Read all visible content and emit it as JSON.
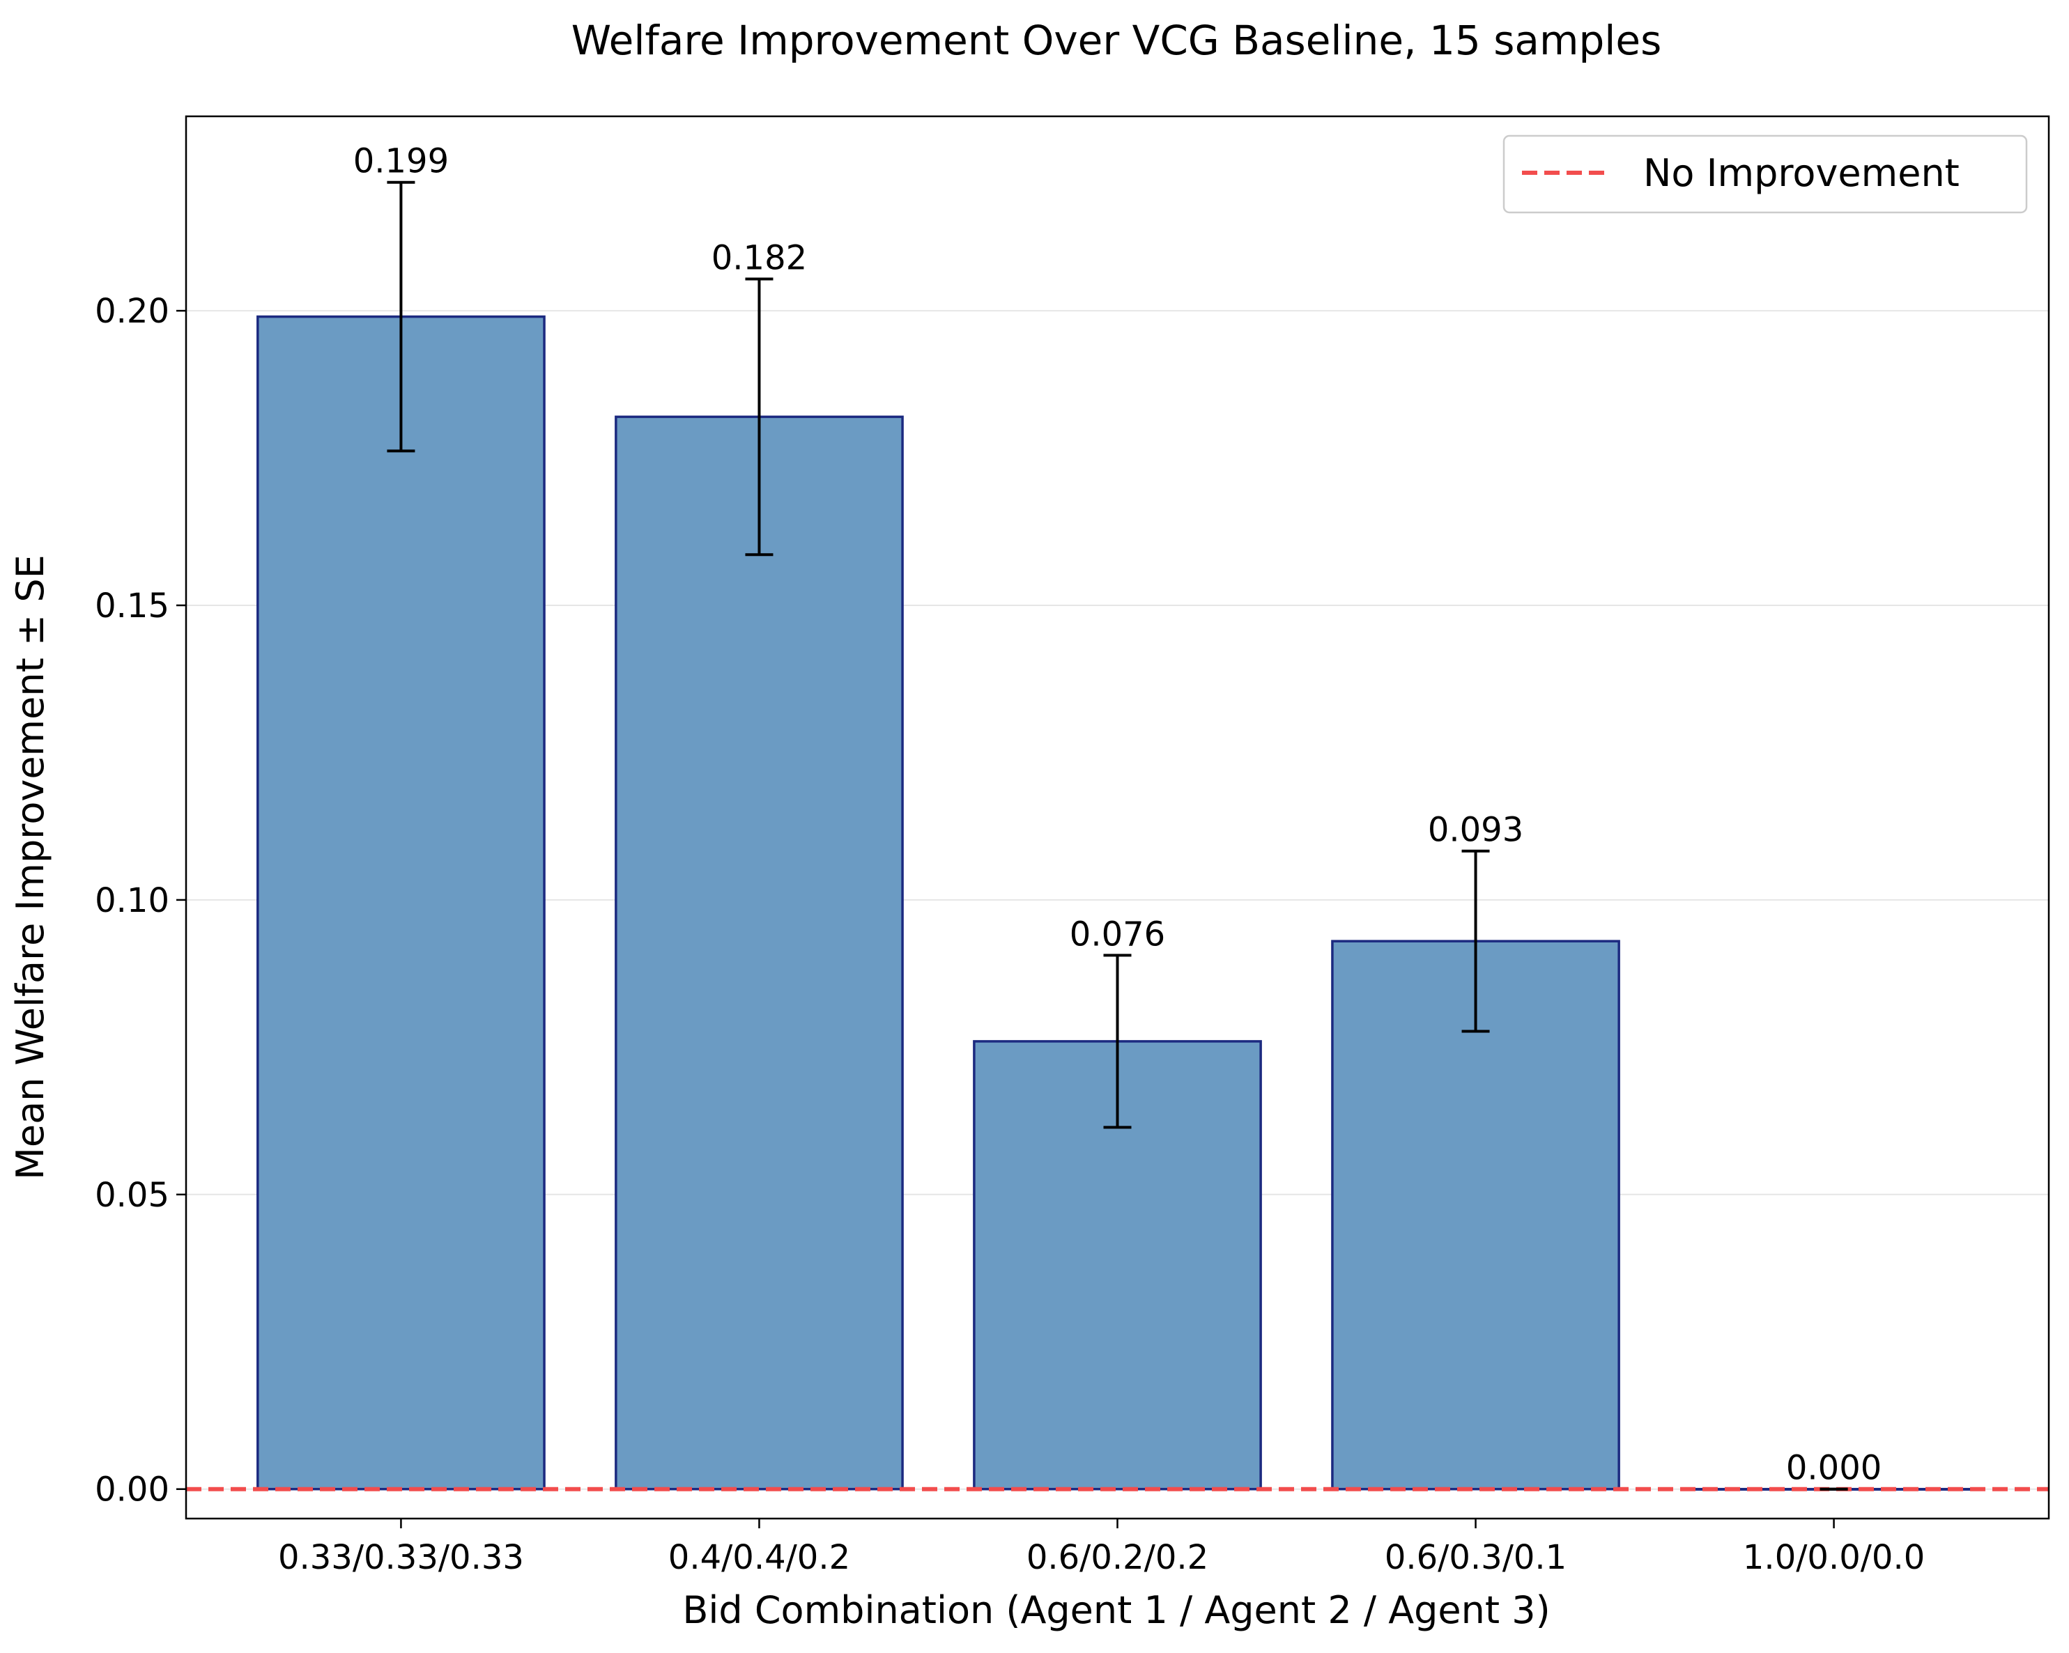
{
  "chart_data": {
    "type": "bar",
    "title": "Welfare Improvement Over VCG Baseline, 15 samples",
    "xlabel": "Bid Combination (Agent 1 / Agent 2 / Agent 3)",
    "ylabel": "Mean Welfare Improvement ± SE",
    "categories": [
      "0.33/0.33/0.33",
      "0.4/0.4/0.2",
      "0.6/0.2/0.2",
      "0.6/0.3/0.1",
      "1.0/0.0/0.0"
    ],
    "values": [
      0.199,
      0.182,
      0.076,
      0.093,
      0.0
    ],
    "value_labels": [
      "0.199",
      "0.182",
      "0.076",
      "0.093",
      "0.000"
    ],
    "errors": [
      0.0228,
      0.0234,
      0.0146,
      0.0153,
      0.0
    ],
    "ylim": [
      -0.005,
      0.233
    ],
    "yticks": [
      0.0,
      0.05,
      0.1,
      0.15,
      0.2
    ],
    "ytick_labels": [
      "0.00",
      "0.05",
      "0.10",
      "0.15",
      "0.20"
    ],
    "grid": "y",
    "reference_line": {
      "y": 0.0,
      "label": "No Improvement",
      "color": "#f24d4d",
      "style": "dashed"
    },
    "legend": {
      "position": "top-right",
      "entries": [
        "No Improvement"
      ]
    },
    "bar_color": "#6b9bc3",
    "bar_edge_color": "#1c2a80",
    "error_color": "#000000"
  }
}
